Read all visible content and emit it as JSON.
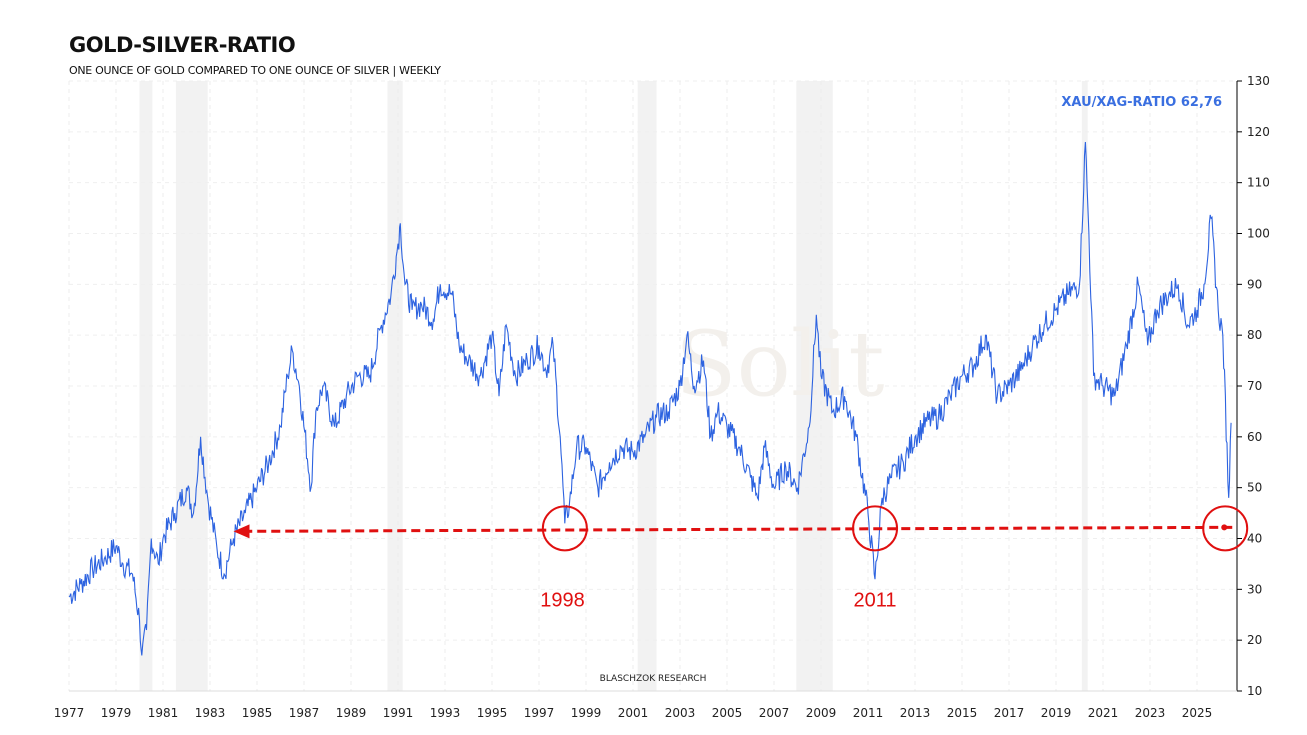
{
  "chart_data": {
    "type": "line",
    "title": "GOLD-SILVER-RATIO",
    "subtitle": "ONE OUNCE OF GOLD COMPARED TO ONE OUNCE OF SILVER | WEEKLY",
    "readout_label": "XAU/XAG-RATIO 62,76",
    "credit": "BLASCHZOK  RESEARCH",
    "watermark": "Solit",
    "xlim": [
      1977,
      2027
    ],
    "ylim": [
      10,
      130
    ],
    "y_axis_position": "right",
    "x_ticks": [
      "1977",
      "1979",
      "1981",
      "1983",
      "1985",
      "1987",
      "1989",
      "1991",
      "1993",
      "1995",
      "1997",
      "1999",
      "2001",
      "2003",
      "2005",
      "2007",
      "2009",
      "2011",
      "2013",
      "2015",
      "2017",
      "2019",
      "2021",
      "2023",
      "2025"
    ],
    "y_ticks": [
      10,
      20,
      30,
      40,
      50,
      60,
      70,
      80,
      90,
      100,
      110,
      120,
      130
    ],
    "grid": true,
    "line_color": "#2d63e0",
    "annotation_color": "#e01010",
    "recession_bands": [
      [
        1980.0,
        1980.55
      ],
      [
        1981.55,
        1982.9
      ],
      [
        1990.55,
        1991.2
      ],
      [
        2001.2,
        2002.0
      ],
      [
        2007.95,
        2009.5
      ],
      [
        2020.1,
        2020.35
      ]
    ],
    "annotations": {
      "support_level": 42,
      "arrow_from": 2026.5,
      "arrow_to": 1984.0,
      "circles": [
        {
          "x": 1998.1,
          "y": 42
        },
        {
          "x": 2011.3,
          "y": 42
        },
        {
          "x": 2026.2,
          "y": 42
        }
      ],
      "labels": [
        {
          "text": "1998",
          "x": 1998.0
        },
        {
          "text": "2011",
          "x": 2011.3
        }
      ],
      "label_y": 28
    },
    "points": [
      [
        1977.0,
        28.5
      ],
      [
        1977.5,
        31
      ],
      [
        1978.0,
        34
      ],
      [
        1978.5,
        36
      ],
      [
        1979.0,
        38.5
      ],
      [
        1979.3,
        35
      ],
      [
        1979.7,
        33
      ],
      [
        1980.0,
        24
      ],
      [
        1980.1,
        17
      ],
      [
        1980.3,
        22
      ],
      [
        1980.5,
        40
      ],
      [
        1980.8,
        35
      ],
      [
        1981.0,
        40
      ],
      [
        1981.5,
        45
      ],
      [
        1982.0,
        50
      ],
      [
        1982.3,
        45
      ],
      [
        1982.6,
        60
      ],
      [
        1982.9,
        48
      ],
      [
        1983.3,
        38
      ],
      [
        1983.6,
        33
      ],
      [
        1984.0,
        40
      ],
      [
        1984.5,
        45
      ],
      [
        1985.0,
        50
      ],
      [
        1985.5,
        55
      ],
      [
        1986.0,
        62
      ],
      [
        1986.3,
        72
      ],
      [
        1986.5,
        77
      ],
      [
        1986.8,
        70
      ],
      [
        1987.3,
        50
      ],
      [
        1987.5,
        65
      ],
      [
        1987.8,
        70
      ],
      [
        1988.3,
        62
      ],
      [
        1988.8,
        68
      ],
      [
        1989.3,
        72
      ],
      [
        1989.8,
        72
      ],
      [
        1990.3,
        82
      ],
      [
        1990.7,
        88
      ],
      [
        1991.0,
        98
      ],
      [
        1991.1,
        102
      ],
      [
        1991.3,
        90
      ],
      [
        1991.6,
        85
      ],
      [
        1992.0,
        86
      ],
      [
        1992.5,
        83
      ],
      [
        1992.8,
        90
      ],
      [
        1993.3,
        88
      ],
      [
        1993.6,
        78
      ],
      [
        1994.0,
        75
      ],
      [
        1994.5,
        72
      ],
      [
        1995.0,
        80
      ],
      [
        1995.3,
        68
      ],
      [
        1995.6,
        82
      ],
      [
        1996.0,
        72
      ],
      [
        1996.5,
        75
      ],
      [
        1997.0,
        78
      ],
      [
        1997.3,
        73
      ],
      [
        1997.6,
        78
      ],
      [
        1997.9,
        60
      ],
      [
        1998.1,
        43
      ],
      [
        1998.3,
        47
      ],
      [
        1998.6,
        58
      ],
      [
        1999.0,
        58
      ],
      [
        1999.5,
        50
      ],
      [
        2000.0,
        55
      ],
      [
        2000.5,
        58
      ],
      [
        2001.0,
        57
      ],
      [
        2001.5,
        60
      ],
      [
        2002.0,
        64
      ],
      [
        2002.5,
        65
      ],
      [
        2003.0,
        70
      ],
      [
        2003.3,
        80
      ],
      [
        2003.6,
        70
      ],
      [
        2004.0,
        75
      ],
      [
        2004.3,
        60
      ],
      [
        2004.6,
        65
      ],
      [
        2005.0,
        62
      ],
      [
        2005.5,
        58
      ],
      [
        2006.0,
        52
      ],
      [
        2006.3,
        48
      ],
      [
        2006.6,
        58
      ],
      [
        2007.0,
        50
      ],
      [
        2007.5,
        54
      ],
      [
        2008.0,
        50
      ],
      [
        2008.5,
        62
      ],
      [
        2008.8,
        84
      ],
      [
        2009.0,
        72
      ],
      [
        2009.5,
        65
      ],
      [
        2010.0,
        68
      ],
      [
        2010.5,
        60
      ],
      [
        2011.0,
        45
      ],
      [
        2011.3,
        32
      ],
      [
        2011.6,
        48
      ],
      [
        2012.0,
        52
      ],
      [
        2012.5,
        55
      ],
      [
        2013.0,
        60
      ],
      [
        2013.5,
        63
      ],
      [
        2014.0,
        64
      ],
      [
        2014.5,
        68
      ],
      [
        2015.0,
        72
      ],
      [
        2015.5,
        74
      ],
      [
        2016.0,
        80
      ],
      [
        2016.5,
        68
      ],
      [
        2017.0,
        70
      ],
      [
        2017.5,
        73
      ],
      [
        2018.0,
        78
      ],
      [
        2018.5,
        82
      ],
      [
        2019.0,
        85
      ],
      [
        2019.5,
        88
      ],
      [
        2020.0,
        90
      ],
      [
        2020.25,
        118
      ],
      [
        2020.4,
        100
      ],
      [
        2020.6,
        72
      ],
      [
        2021.0,
        70
      ],
      [
        2021.5,
        68
      ],
      [
        2022.0,
        78
      ],
      [
        2022.5,
        90
      ],
      [
        2022.9,
        78
      ],
      [
        2023.3,
        85
      ],
      [
        2023.8,
        88
      ],
      [
        2024.2,
        90
      ],
      [
        2024.6,
        82
      ],
      [
        2025.0,
        85
      ],
      [
        2025.3,
        90
      ],
      [
        2025.6,
        103
      ],
      [
        2025.9,
        85
      ],
      [
        2026.1,
        80
      ],
      [
        2026.35,
        48
      ],
      [
        2026.45,
        62.76
      ]
    ]
  }
}
